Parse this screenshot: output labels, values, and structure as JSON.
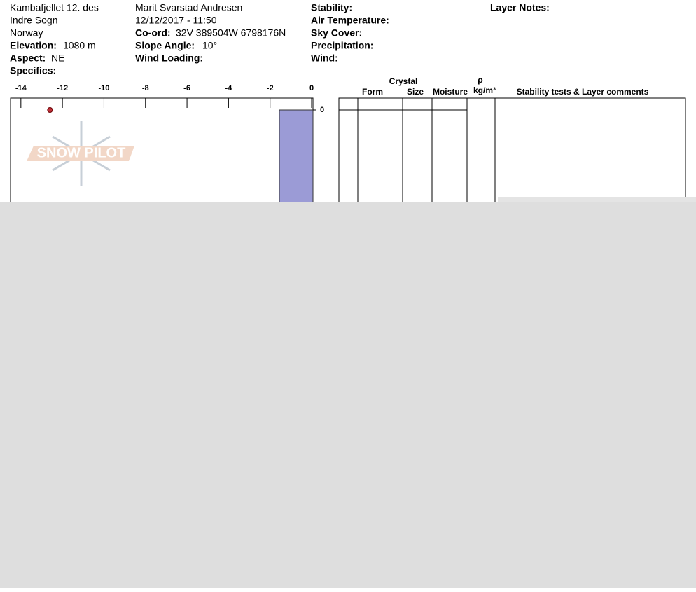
{
  "header": {
    "site": "Kambafjellet 12. des",
    "area": "Indre Sogn",
    "country": "Norway",
    "elevation_label": "Elevation:",
    "elevation": "1080 m",
    "aspect_label": "Aspect:",
    "aspect": "NE",
    "specifics_label": "Specifics:",
    "observer": "Marit Svarstad Andresen",
    "datetime": "12/12/2017 - 11:50",
    "coord_label": "Co-ord:",
    "coord": "32V 389504W 6798176N",
    "slope_label": "Slope Angle:",
    "slope": "10°",
    "wind_loading_label": "Wind Loading:",
    "stability_label": "Stability:",
    "air_temp_label": "Air Temperature:",
    "sky_label": "Sky Cover:",
    "precip_label": "Precipitation:",
    "wind_label": "Wind:",
    "layer_notes_label": "Layer Notes:"
  },
  "watermark": "SNOW PILOT",
  "chart_data": {
    "type": "scatter",
    "xlim": [
      -14.5,
      0
    ],
    "xticks": [
      -14,
      -12,
      -10,
      -8,
      -6,
      -4,
      -2,
      0
    ],
    "yticks": [
      0
    ],
    "x": [
      -12.6
    ],
    "y": [
      0
    ],
    "color": "#c0303a"
  },
  "table": {
    "group": "Crystal",
    "form": "Form",
    "size": "Size",
    "moisture": "Moisture",
    "rho": "ρ",
    "density_unit": "kg/m³",
    "comments": "Stability tests & Layer comments"
  }
}
